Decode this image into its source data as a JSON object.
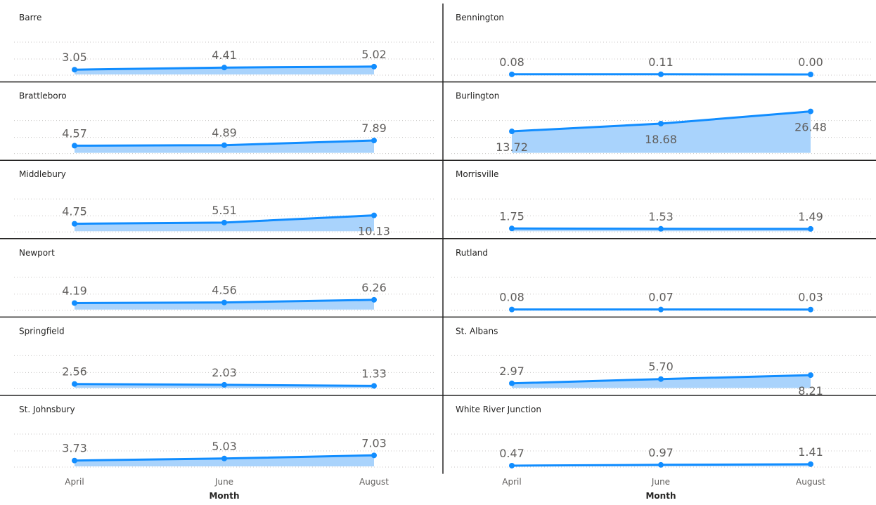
{
  "chart_data": {
    "type": "area",
    "layout": "small-multiples",
    "columns": 2,
    "x": [
      "April",
      "June",
      "August"
    ],
    "xlabel": "Month",
    "grid": "dotted horizontal",
    "colors": {
      "line": "#118dff",
      "area": "#a9d3fc"
    },
    "panels": [
      {
        "name": "Barre",
        "values": [
          3.05,
          4.41,
          5.02
        ],
        "labels": [
          "3.05",
          "4.41",
          "5.02"
        ]
      },
      {
        "name": "Bennington",
        "values": [
          0.08,
          0.11,
          0.0
        ],
        "labels": [
          "0.08",
          "0.11",
          "0.00"
        ]
      },
      {
        "name": "Brattleboro",
        "values": [
          4.57,
          4.89,
          7.89
        ],
        "labels": [
          "4.57",
          "4.89",
          "7.89"
        ]
      },
      {
        "name": "Burlington",
        "values": [
          13.72,
          18.68,
          26.48
        ],
        "labels": [
          "13.72",
          "18.68",
          "26.48"
        ]
      },
      {
        "name": "Middlebury",
        "values": [
          4.75,
          5.51,
          10.13
        ],
        "labels": [
          "4.75",
          "5.51",
          "10.13"
        ]
      },
      {
        "name": "Morrisville",
        "values": [
          1.75,
          1.53,
          1.49
        ],
        "labels": [
          "1.75",
          "1.53",
          "1.49"
        ]
      },
      {
        "name": "Newport",
        "values": [
          4.19,
          4.56,
          6.26
        ],
        "labels": [
          "4.19",
          "4.56",
          "6.26"
        ]
      },
      {
        "name": "Rutland",
        "values": [
          0.08,
          0.07,
          0.03
        ],
        "labels": [
          "0.08",
          "0.07",
          "0.03"
        ]
      },
      {
        "name": "Springfield",
        "values": [
          2.56,
          2.03,
          1.33
        ],
        "labels": [
          "2.56",
          "2.03",
          "1.33"
        ]
      },
      {
        "name": "St. Albans",
        "values": [
          2.97,
          5.7,
          8.21
        ],
        "labels": [
          "2.97",
          "5.70",
          "8.21"
        ]
      },
      {
        "name": "St. Johnsbury",
        "values": [
          3.73,
          5.03,
          7.03
        ],
        "labels": [
          "3.73",
          "5.03",
          "7.03"
        ]
      },
      {
        "name": "White River Junction",
        "values": [
          0.47,
          0.97,
          1.41
        ],
        "labels": [
          "0.47",
          "0.97",
          "1.41"
        ]
      }
    ],
    "ylim": [
      0,
      26.48
    ]
  }
}
